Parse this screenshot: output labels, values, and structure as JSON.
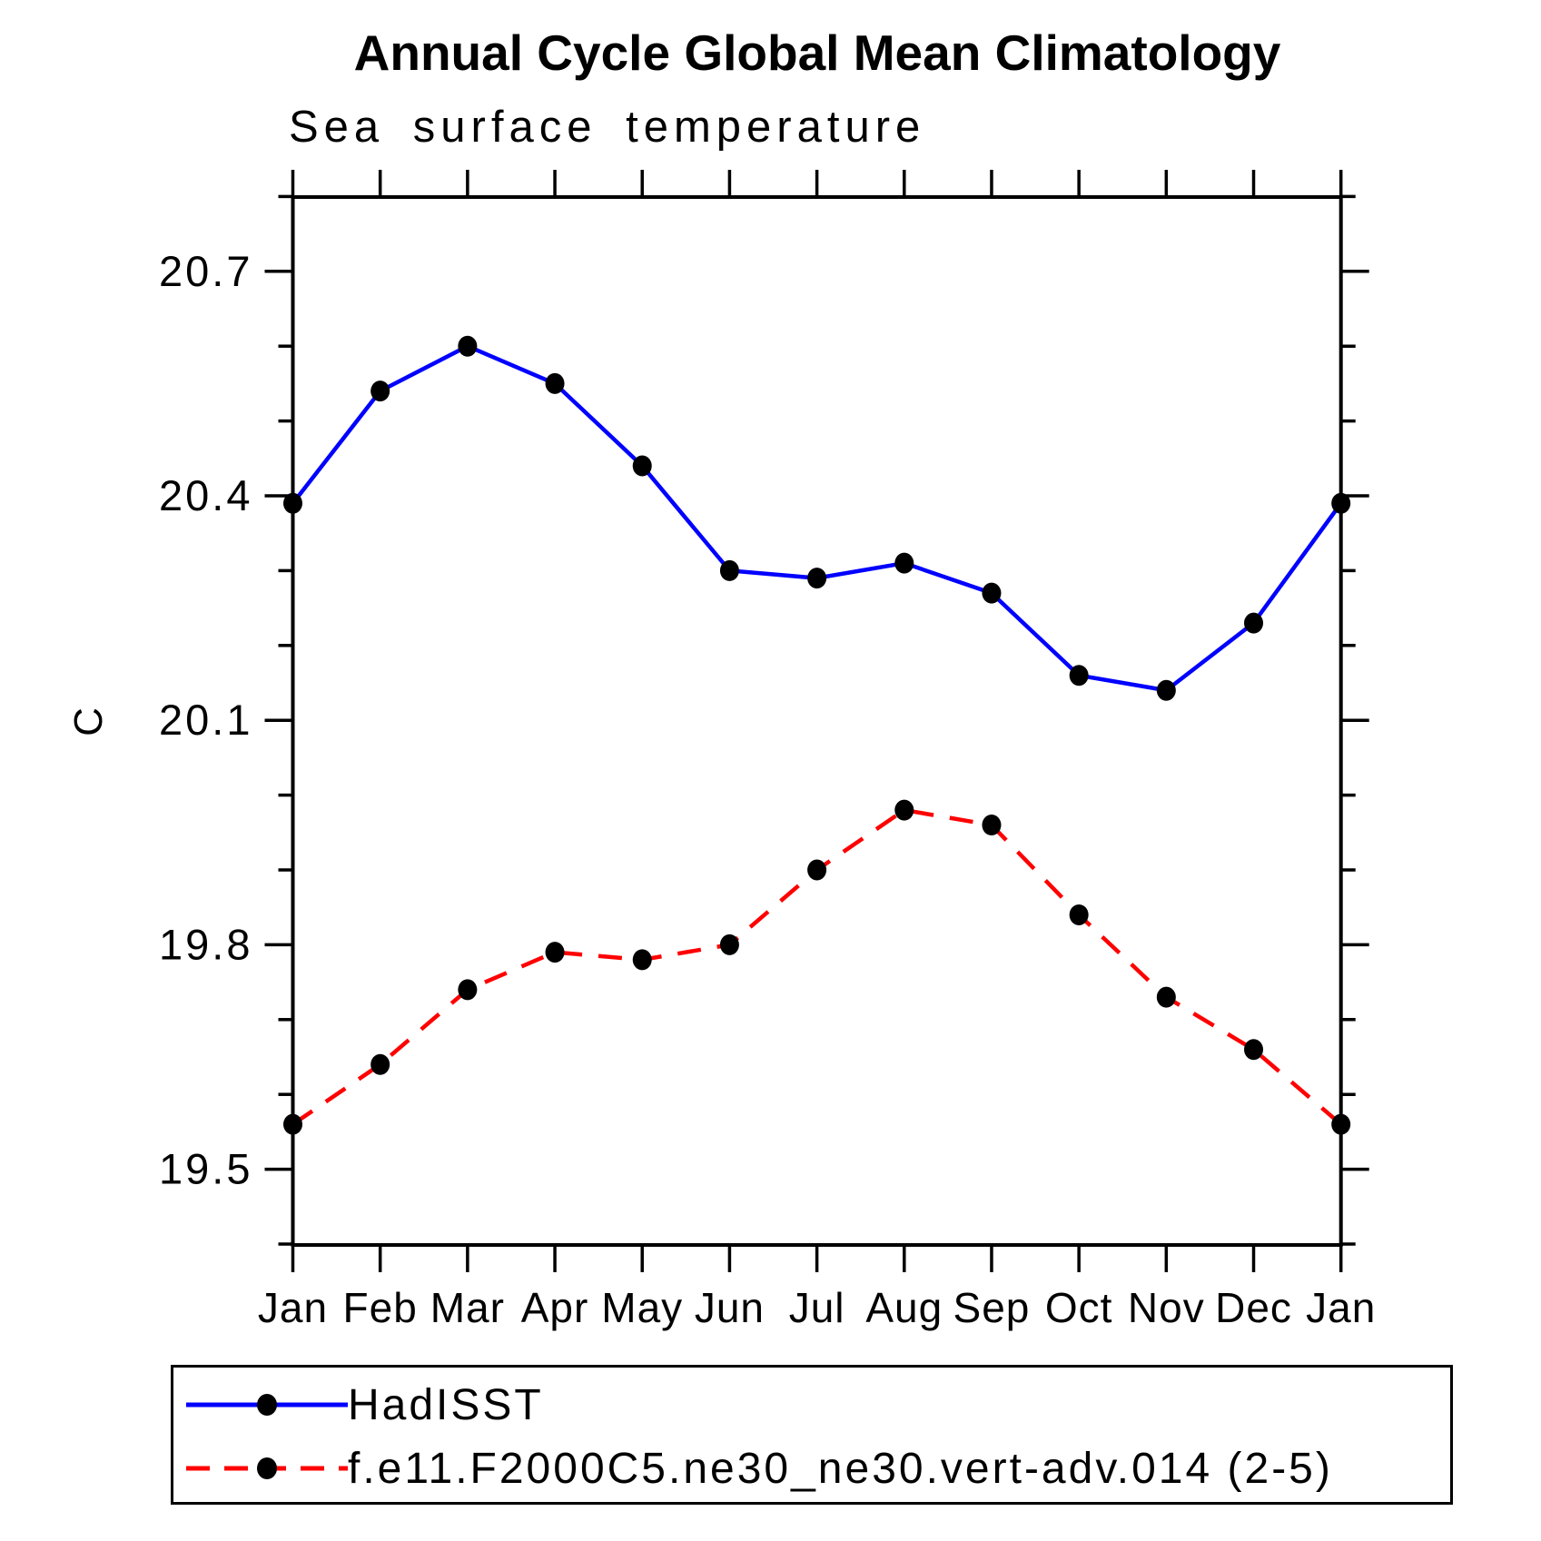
{
  "title": "Annual Cycle Global Mean Climatology",
  "subtitle": "Sea surface temperature",
  "ylabel": "C",
  "colors": {
    "hadisst_line": "#0000ff",
    "model_line": "#ff0000",
    "marker": "#000000",
    "axis": "#000000"
  },
  "chart_data": {
    "type": "line",
    "title": "Annual Cycle Global Mean Climatology",
    "subtitle": "Sea surface temperature",
    "xlabel": "",
    "ylabel": "C",
    "categories": [
      "Jan",
      "Feb",
      "Mar",
      "Apr",
      "May",
      "Jun",
      "Jul",
      "Aug",
      "Sep",
      "Oct",
      "Nov",
      "Dec",
      "Jan"
    ],
    "series": [
      {
        "name": "HadISST",
        "color": "#0000ff",
        "style": "solid",
        "marker": "filled-circle",
        "values": [
          20.39,
          20.54,
          20.6,
          20.55,
          20.44,
          20.3,
          20.29,
          20.31,
          20.27,
          20.16,
          20.14,
          20.23,
          20.39
        ]
      },
      {
        "name": "f.e11.F2000C5.ne30_ne30.vert-adv.014 (2-5)",
        "color": "#ff0000",
        "style": "dashed",
        "marker": "filled-circle",
        "values": [
          19.56,
          19.64,
          19.74,
          19.79,
          19.78,
          19.8,
          19.9,
          19.98,
          19.96,
          19.84,
          19.73,
          19.66,
          19.56
        ]
      }
    ],
    "yticks_major": [
      19.5,
      19.8,
      20.1,
      20.4,
      20.7
    ],
    "ytick_labels": [
      "19.5",
      "19.8",
      "20.1",
      "20.4",
      "20.7"
    ],
    "ytick_minor_step": 0.1,
    "ylim": [
      19.4,
      20.8
    ],
    "grid": false,
    "legend_position": "bottom-left"
  }
}
